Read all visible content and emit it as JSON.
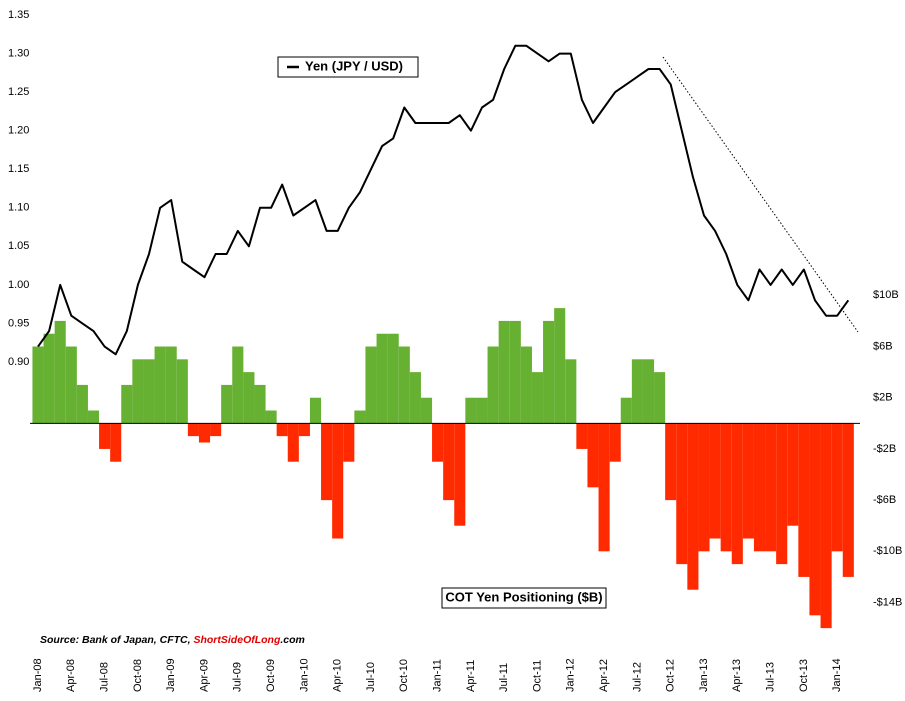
{
  "chart_data": {
    "type": "line_bar",
    "categories": [
      "Jan-08",
      null,
      null,
      "Apr-08",
      null,
      null,
      "Jul-08",
      null,
      null,
      "Oct-08",
      null,
      null,
      "Jan-09",
      null,
      null,
      "Apr-09",
      null,
      null,
      "Jul-09",
      null,
      null,
      "Oct-09",
      null,
      null,
      "Jan-10",
      null,
      null,
      "Apr-10",
      null,
      null,
      "Jul-10",
      null,
      null,
      "Oct-10",
      null,
      null,
      "Jan-11",
      null,
      null,
      "Apr-11",
      null,
      null,
      "Jul-11",
      null,
      null,
      "Oct-11",
      null,
      null,
      "Jan-12",
      null,
      null,
      "Apr-12",
      null,
      null,
      "Jul-12",
      null,
      null,
      "Oct-12",
      null,
      null,
      "Jan-13",
      null,
      null,
      "Apr-13",
      null,
      null,
      "Jul-13",
      null,
      null,
      "Oct-13",
      null,
      null,
      "Jan-14",
      null
    ],
    "series": [
      {
        "name": "Yen (JPY / USD)",
        "color": "#000000",
        "type": "line",
        "axis": "y",
        "values": [
          0.92,
          0.94,
          1.0,
          0.96,
          0.95,
          0.94,
          0.92,
          0.91,
          0.94,
          1.0,
          1.04,
          1.1,
          1.11,
          1.03,
          1.02,
          1.01,
          1.04,
          1.04,
          1.07,
          1.05,
          1.1,
          1.1,
          1.13,
          1.09,
          1.1,
          1.11,
          1.07,
          1.07,
          1.1,
          1.12,
          1.15,
          1.18,
          1.19,
          1.23,
          1.21,
          1.21,
          1.21,
          1.21,
          1.22,
          1.2,
          1.23,
          1.24,
          1.28,
          1.31,
          1.31,
          1.3,
          1.29,
          1.3,
          1.3,
          1.24,
          1.21,
          1.23,
          1.25,
          1.26,
          1.27,
          1.28,
          1.28,
          1.26,
          1.2,
          1.14,
          1.09,
          1.07,
          1.04,
          1.0,
          0.98,
          1.02,
          1.0,
          1.02,
          1.0,
          1.02,
          0.98,
          0.96,
          0.96,
          0.98
        ]
      },
      {
        "name": "COT Yen Positioning ($B)",
        "color": "#66b032",
        "negative_color": "#ff2a00",
        "type": "bar",
        "axis": "y2",
        "values": [
          6,
          7,
          8,
          6,
          3,
          1,
          -2,
          -3,
          3,
          5,
          5,
          6,
          6,
          5,
          -1,
          -1.5,
          -1,
          3,
          6,
          4,
          3,
          1,
          -1,
          -3,
          -1,
          2,
          -6,
          -9,
          -3,
          1,
          6,
          7,
          7,
          6,
          4,
          2,
          -3,
          -6,
          -8,
          2,
          2,
          6,
          8,
          8,
          6,
          4,
          8,
          9,
          5,
          -2,
          -5,
          -10,
          -3,
          2,
          5,
          5,
          4,
          -6,
          -11,
          -13,
          -10,
          -9,
          -10,
          -11,
          -9,
          -10,
          -10,
          -11,
          -8,
          -12,
          -15,
          -16,
          -10,
          -12
        ]
      }
    ],
    "ylim": [
      0.52,
      1.35
    ],
    "yticks": [
      0.9,
      0.95,
      1,
      1.05,
      1.1,
      1.15,
      1.2,
      1.25,
      1.3,
      1.35
    ],
    "ytick_labels": [
      "0.90",
      "0.95",
      "1.00",
      "1.05",
      "1.10",
      "1.15",
      "1.20",
      "1.25",
      "1.30",
      "1.35"
    ],
    "y2lim": [
      -18.1,
      31.9
    ],
    "y2ticks": [
      {
        "value": 10,
        "label": "$10B"
      },
      {
        "value": 6,
        "label": "$6B"
      },
      {
        "value": 2,
        "label": "$2B"
      },
      {
        "value": -2,
        "label": "-$2B"
      },
      {
        "value": -6,
        "label": "-$6B"
      },
      {
        "value": -10,
        "label": "-$10B"
      },
      {
        "value": -14,
        "label": "-$14B"
      }
    ],
    "source": {
      "prefix": "Source: Bank of Japan, CFTC, ",
      "brand_a": "Short",
      "brand_b": "Side",
      "brand_c": "Of",
      "brand_d": "Long",
      "suffix": ".com"
    }
  }
}
